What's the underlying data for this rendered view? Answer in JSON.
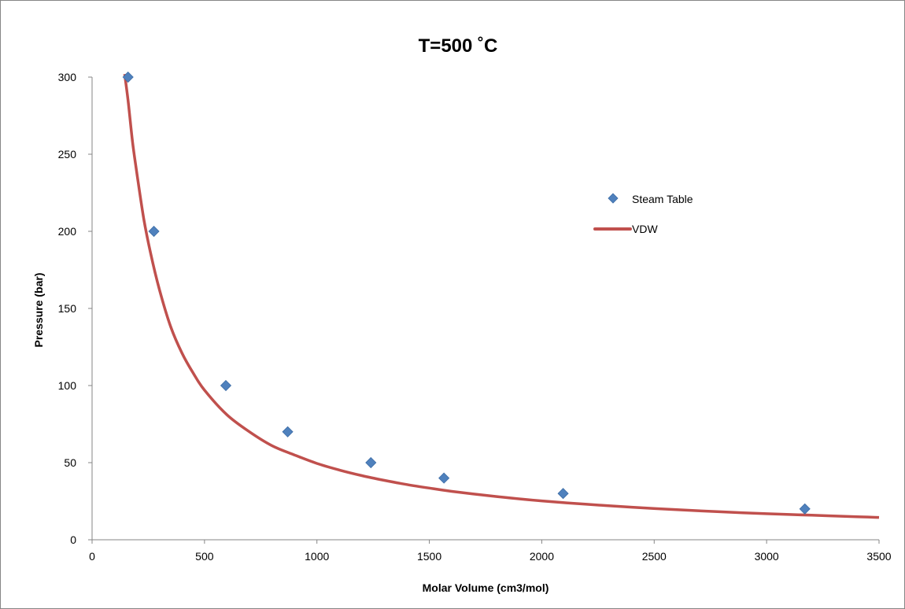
{
  "chart_data": {
    "type": "scatter",
    "title": "T=500 ˚C",
    "xlabel": "Molar Volume (cm3/mol)",
    "ylabel": "Pressure (bar)",
    "xlim": [
      0,
      3500
    ],
    "ylim": [
      0,
      300
    ],
    "xticks": [
      0,
      500,
      1000,
      1500,
      2000,
      2500,
      3000,
      3500
    ],
    "yticks": [
      0,
      50,
      100,
      150,
      200,
      250,
      300
    ],
    "grid": false,
    "legend_position": "right",
    "series": [
      {
        "name": "Steam Table",
        "kind": "markers",
        "marker": "diamond",
        "color": "#4f81bd",
        "x": [
          160,
          275,
          595,
          870,
          1240,
          1565,
          2095,
          3170
        ],
        "y": [
          300,
          200,
          100,
          70,
          50,
          40,
          30,
          20
        ]
      },
      {
        "name": "VDW",
        "kind": "line",
        "color": "#c0504d",
        "x": [
          145,
          160,
          180,
          200,
          230,
          260,
          300,
          350,
          400,
          450,
          500,
          600,
          700,
          800,
          900,
          1000,
          1100,
          1200,
          1300,
          1400,
          1500,
          1600,
          1800,
          2000,
          2200,
          2400,
          2600,
          2800,
          3000,
          3200,
          3400,
          3500
        ],
        "y": [
          302,
          285,
          258,
          237,
          208,
          186,
          162,
          138,
          121,
          108,
          97,
          81,
          70,
          61,
          55,
          49.5,
          45.2,
          41.6,
          38.5,
          35.8,
          33.5,
          31.4,
          28.0,
          25.2,
          23.0,
          21.1,
          19.5,
          18.1,
          16.9,
          15.9,
          14.9,
          14.5
        ]
      }
    ]
  }
}
